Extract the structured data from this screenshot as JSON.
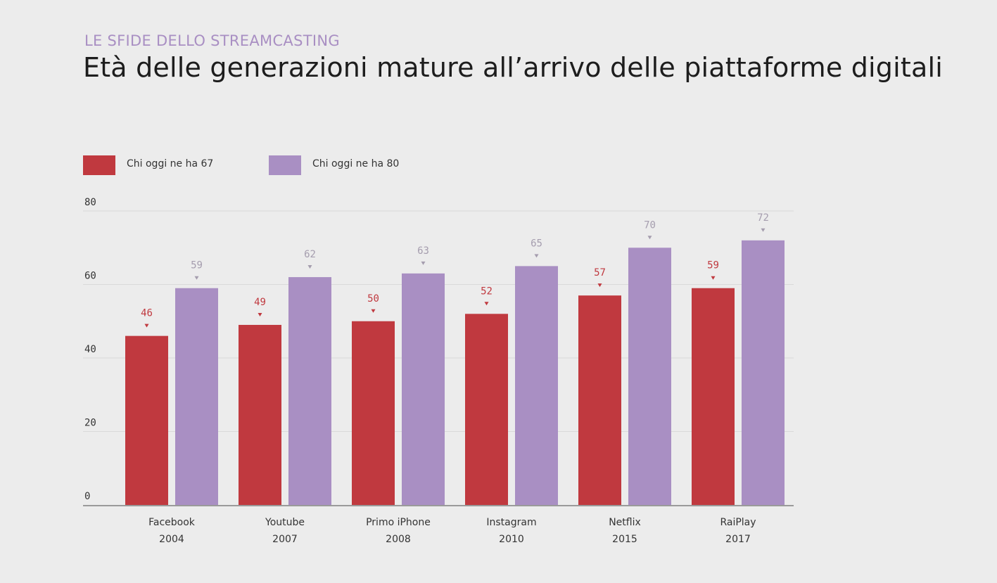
{
  "header": {
    "kicker": "LE SFIDE DELLO STREAMCASTING",
    "title": "Età delle generazioni mature all’arrivo delle piattaforme digitali"
  },
  "colors": {
    "series_67": "#c0393f",
    "series_80": "#a98fc3",
    "label_67": "#c0393f",
    "label_80": "#a59dae",
    "grid": "#d9d9d9",
    "axis": "#9a9a9a",
    "tick_text": "#333333"
  },
  "chart_data": {
    "type": "bar",
    "categories": [
      [
        "Facebook",
        "2004"
      ],
      [
        "Youtube",
        "2007"
      ],
      [
        "Primo iPhone",
        "2008"
      ],
      [
        "Instagram",
        "2010"
      ],
      [
        "Netflix",
        "2015"
      ],
      [
        "RaiPlay",
        "2017"
      ]
    ],
    "series": [
      {
        "name": "Chi oggi ne ha 67",
        "values": [
          46,
          49,
          50,
          52,
          57,
          59
        ]
      },
      {
        "name": "Chi oggi ne ha 80",
        "values": [
          59,
          62,
          63,
          65,
          70,
          72
        ]
      }
    ],
    "ylim": [
      0,
      80
    ],
    "yticks": [
      0,
      20,
      40,
      60,
      80
    ],
    "grid": true,
    "data_labels": true,
    "legend_position": "top-left"
  }
}
